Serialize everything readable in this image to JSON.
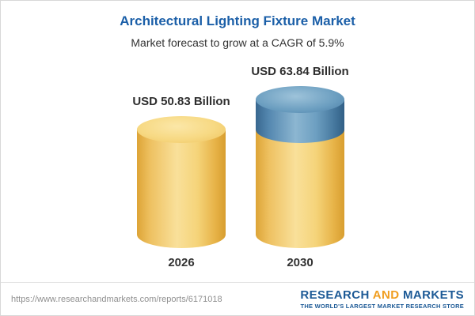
{
  "header": {
    "title": "Architectural Lighting Fixture Market",
    "subtitle": "Market forecast to grow at a CAGR of 5.9%"
  },
  "chart_data": {
    "type": "bar",
    "bar_style": "cylinder-3d",
    "title": "Architectural Lighting Fixture Market",
    "subtitle": "Market forecast to grow at a CAGR of 5.9%",
    "categories": [
      "2026",
      "2030"
    ],
    "values": [
      50.83,
      63.84
    ],
    "value_labels": [
      "USD 50.83 Billion",
      "USD 63.84 Billion"
    ],
    "units": "USD Billion",
    "cagr_percent": 5.9,
    "legend": "none",
    "axes_visible": false,
    "colors": {
      "bar": "#f5d47a",
      "growth_segment": "#5d92b8"
    }
  },
  "footer": {
    "url": "https://www.researchandmarkets.com/reports/6171018",
    "logo": {
      "research": "RESEARCH",
      "and": "AND",
      "markets": "MARKETS",
      "tagline": "THE WORLD'S LARGEST MARKET RESEARCH STORE"
    }
  },
  "colors": {
    "title_blue": "#1b5fa8",
    "text_dark": "#333333",
    "bar_yellow": "#f5d47a",
    "segment_blue": "#5d92b8",
    "logo_blue": "#1d5a96",
    "logo_orange": "#f09d1e",
    "url_gray": "#8f8f8f",
    "divider": "#e2e2e2"
  }
}
